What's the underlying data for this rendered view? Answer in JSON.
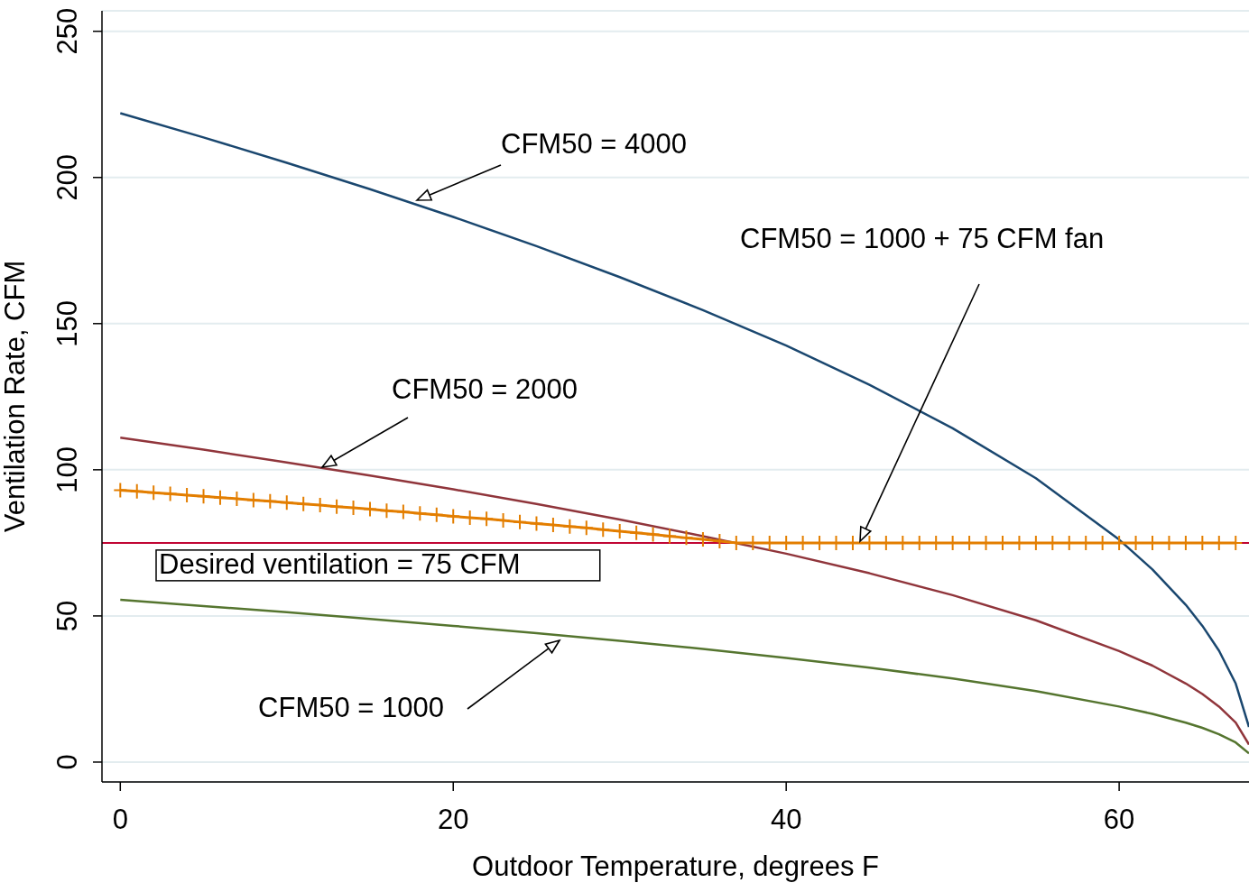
{
  "chart_data": {
    "type": "line",
    "xlabel": "Outdoor Temperature, degrees F",
    "ylabel": "Ventilation Rate, CFM",
    "xlim": [
      -1.1,
      67.8
    ],
    "xticks": [
      0,
      20,
      40,
      60
    ],
    "ylim": [
      -6.8,
      257
    ],
    "yticks": [
      0,
      50,
      100,
      150,
      200,
      250
    ],
    "grid": "y",
    "line_style": "solid",
    "x": [
      0,
      5,
      10,
      15,
      20,
      25,
      30,
      35,
      40,
      45,
      50,
      55,
      60,
      62,
      64,
      65,
      66,
      67,
      67.8
    ],
    "series": [
      {
        "color": "#1a476f",
        "values": [
          222,
          213.7,
          205,
          196,
          186.5,
          176.5,
          165.9,
          154.6,
          142.5,
          129.1,
          114.2,
          97.1,
          76.1,
          65.9,
          53.8,
          46.6,
          38.1,
          26.9,
          12
        ]
      },
      {
        "color": "#90353b",
        "values": [
          111,
          106.9,
          102.5,
          98,
          93.3,
          88.3,
          83,
          77.3,
          71.3,
          64.6,
          57.1,
          48.5,
          38,
          33,
          26.9,
          23.3,
          19,
          13.5,
          6
        ]
      },
      {
        "color": "#55752f",
        "values": [
          55.5,
          53.4,
          51.3,
          49,
          46.6,
          44.1,
          41.5,
          38.7,
          35.6,
          32.3,
          28.6,
          24.3,
          19,
          16.5,
          13.5,
          11.7,
          9.5,
          6.7,
          3
        ]
      },
      {
        "color": "#e37e00",
        "marker": "cross",
        "x": [
          0,
          1,
          2,
          3,
          4,
          5,
          6,
          7,
          8,
          9,
          10,
          11,
          12,
          13,
          14,
          15,
          16,
          17,
          18,
          19,
          20,
          21,
          22,
          23,
          24,
          25,
          26,
          27,
          28,
          29,
          30,
          31,
          32,
          33,
          34,
          35,
          36,
          37,
          38,
          39,
          40,
          41,
          42,
          43,
          44,
          45,
          46,
          47,
          48,
          49,
          50,
          51,
          52,
          53,
          54,
          55,
          56,
          57,
          58,
          59,
          60,
          61,
          62,
          63,
          64,
          65,
          66,
          67
        ],
        "values": [
          93,
          92.6,
          92.2,
          91.8,
          91.3,
          90.9,
          90.5,
          90.1,
          89.6,
          89.2,
          88.8,
          88.3,
          87.9,
          87.4,
          87,
          86.5,
          86,
          85.6,
          85.1,
          84.6,
          84.1,
          83.6,
          83.2,
          82.7,
          82.1,
          81.6,
          81.1,
          80.6,
          80.1,
          79.5,
          79,
          78.4,
          77.9,
          77.3,
          76.7,
          76.2,
          75.6,
          75,
          75,
          75,
          75,
          75,
          75,
          75,
          75,
          75,
          75,
          75,
          75,
          75,
          75,
          75,
          75,
          75,
          75,
          75,
          75,
          75,
          75,
          75,
          75,
          75,
          75,
          75,
          75,
          75,
          75,
          75
        ]
      }
    ],
    "ref_lines": [
      {
        "axis": "y",
        "value": 75,
        "label": "Desired ventilation = 75 CFM",
        "color": "#c10534"
      }
    ],
    "annotations": [
      "CFM50 = 4000",
      "CFM50 = 2000",
      "CFM50 = 1000 + 75 CFM fan",
      "CFM50 = 1000"
    ]
  }
}
